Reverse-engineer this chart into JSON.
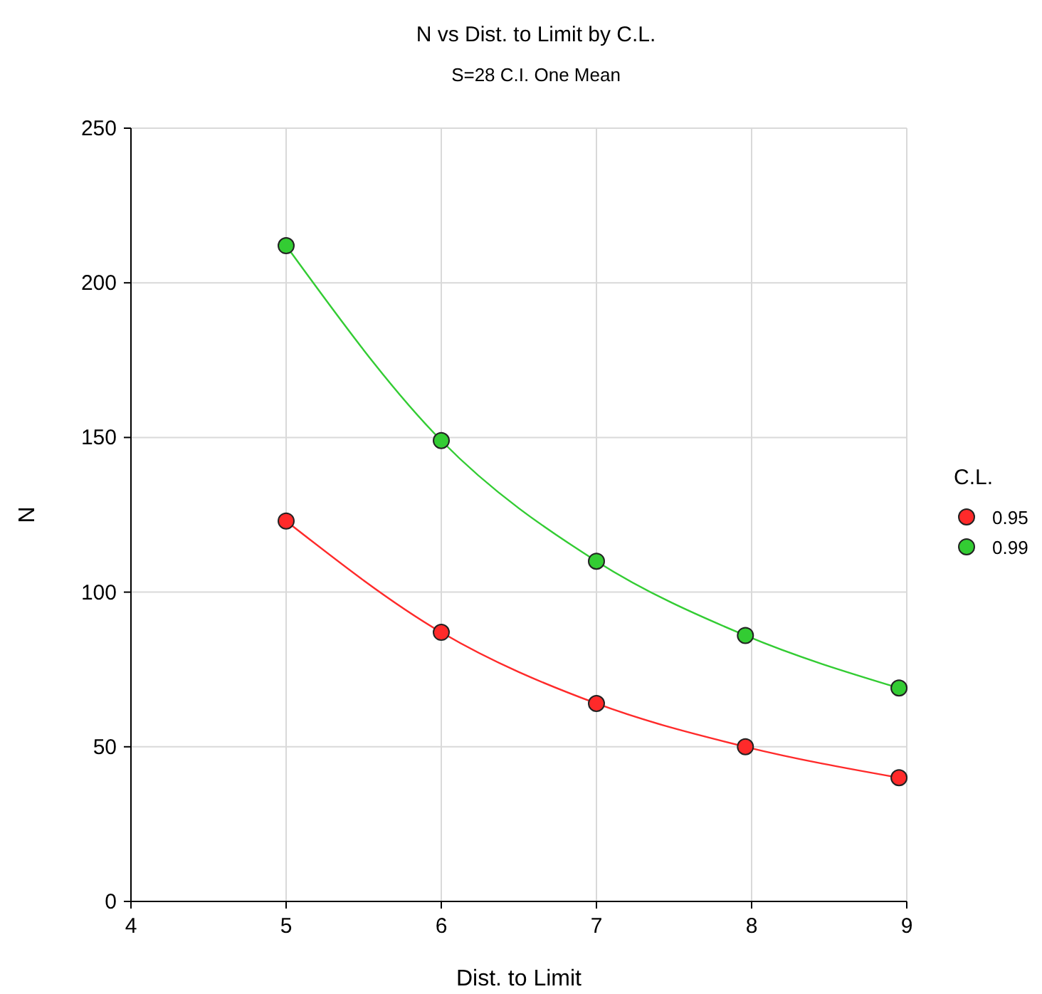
{
  "chart_data": {
    "type": "line",
    "title": "N vs Dist. to Limit by C.L.",
    "subtitle": "S=28 C.I. One Mean",
    "xlabel": "Dist. to Limit",
    "ylabel": "N",
    "legend_title": "C.L.",
    "series": [
      {
        "name": "0.95",
        "color": "#ff2a2a",
        "x": [
          5,
          6,
          7,
          7.96,
          8.95
        ],
        "values": [
          123,
          87,
          64,
          50,
          40
        ]
      },
      {
        "name": "0.99",
        "color": "#33cc33",
        "x": [
          5,
          6,
          7,
          7.96,
          8.95
        ],
        "values": [
          212,
          149,
          110,
          86,
          69
        ]
      }
    ],
    "xlim": [
      4,
      9
    ],
    "xticks": [
      4,
      5,
      6,
      7,
      8,
      9
    ],
    "ylim": [
      0,
      250
    ],
    "yticks": [
      0,
      50,
      100,
      150,
      200,
      250
    ],
    "grid": true,
    "legend": "right",
    "marker": "circle",
    "line_style": "solid"
  }
}
